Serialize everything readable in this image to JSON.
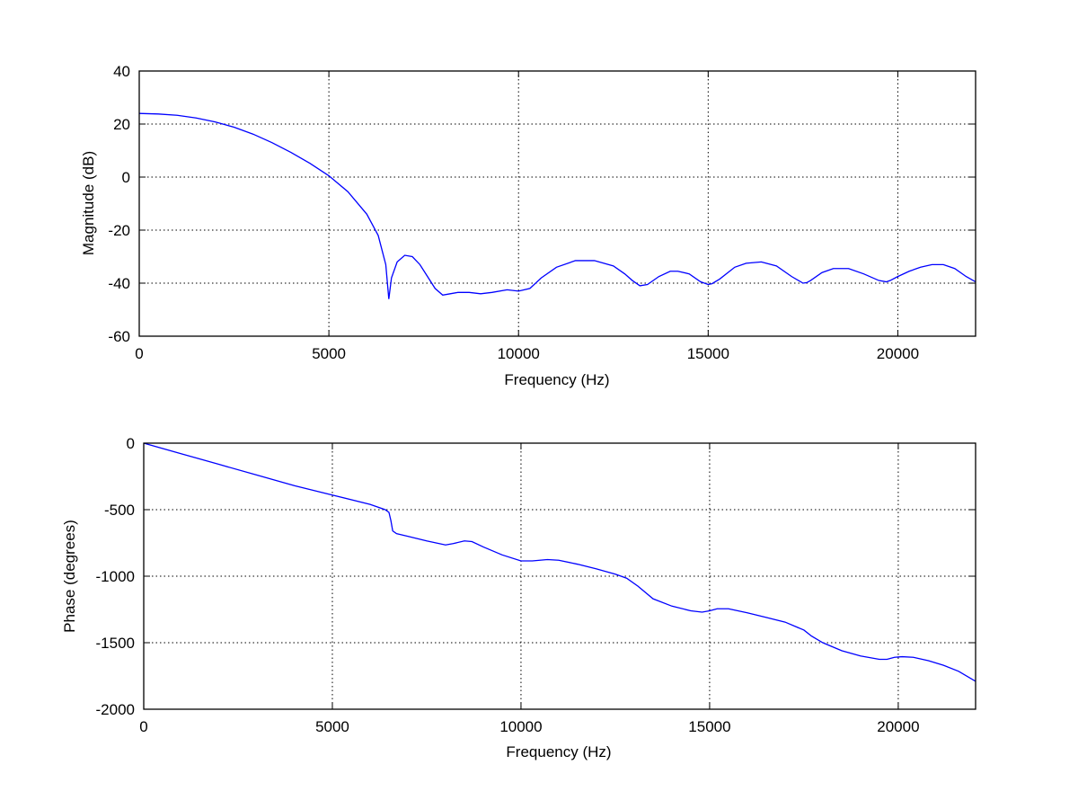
{
  "chart_data": [
    {
      "type": "line",
      "title": "",
      "xlabel": "Frequency (Hz)",
      "ylabel": "Magnitude (dB)",
      "xlim": [
        0,
        22050
      ],
      "ylim": [
        -60,
        40
      ],
      "xticks": [
        0,
        5000,
        10000,
        15000,
        20000
      ],
      "yticks": [
        -60,
        -40,
        -20,
        0,
        20,
        40
      ],
      "grid": true,
      "line_color": "#0000ff",
      "series": [
        {
          "x": [
            0,
            500,
            1000,
            1500,
            2000,
            2500,
            3000,
            3500,
            4000,
            4500,
            5000,
            5500,
            6000,
            6300,
            6500,
            6580,
            6650,
            6800,
            7000,
            7200,
            7400,
            7600,
            7800,
            8000,
            8200,
            8400,
            8700,
            9000,
            9300,
            9700,
            10000,
            10300,
            10600,
            11000,
            11500,
            12000,
            12500,
            12800,
            13000,
            13200,
            13400,
            13700,
            14000,
            14200,
            14500,
            14800,
            15000,
            15100,
            15300,
            15700,
            16000,
            16400,
            16800,
            17200,
            17500,
            17600,
            17700,
            18000,
            18300,
            18700,
            19100,
            19500,
            19700,
            19800,
            20000,
            20300,
            20600,
            20900,
            21200,
            21500,
            21800,
            22050
          ],
          "y": [
            24,
            23.8,
            23.3,
            22.3,
            20.8,
            18.8,
            16.2,
            13,
            9.3,
            5.2,
            0.5,
            -5.5,
            -14,
            -22,
            -33,
            -46,
            -38,
            -32,
            -29.5,
            -30,
            -33,
            -37.5,
            -42,
            -44.5,
            -44,
            -43.5,
            -43.5,
            -44,
            -43.5,
            -42.5,
            -43,
            -42,
            -38,
            -34,
            -31.5,
            -31.5,
            -33.5,
            -36.5,
            -39,
            -41,
            -40.5,
            -37.5,
            -35.5,
            -35.5,
            -36.5,
            -39.5,
            -40.5,
            -40.2,
            -38.5,
            -34,
            -32.5,
            -32,
            -33.5,
            -37.5,
            -40,
            -39.8,
            -39,
            -36,
            -34.5,
            -34.5,
            -36.5,
            -39,
            -39.5,
            -39,
            -37.5,
            -35.5,
            -34,
            -33,
            -33,
            -34.5,
            -37.5,
            -39.5
          ]
        }
      ]
    },
    {
      "type": "line",
      "title": "",
      "xlabel": "Frequency (Hz)",
      "ylabel": "Phase (degrees)",
      "xlim": [
        0,
        22050
      ],
      "ylim": [
        -2000,
        0
      ],
      "xticks": [
        0,
        5000,
        10000,
        15000,
        20000
      ],
      "yticks": [
        -2000,
        -1500,
        -1000,
        -500,
        0
      ],
      "grid": true,
      "line_color": "#0000ff",
      "series": [
        {
          "x": [
            0,
            1000,
            2000,
            3000,
            4000,
            5000,
            6000,
            6400,
            6500,
            6550,
            6600,
            6700,
            7000,
            7500,
            8000,
            8200,
            8500,
            8700,
            9000,
            9500,
            10000,
            10300,
            10700,
            11000,
            11500,
            12000,
            12500,
            12800,
            13100,
            13500,
            14000,
            14500,
            14800,
            15000,
            15200,
            15500,
            16000,
            16500,
            17000,
            17500,
            17700,
            18000,
            18500,
            19000,
            19500,
            19700,
            19900,
            20100,
            20400,
            20800,
            21200,
            21600,
            22050
          ],
          "y": [
            0,
            -80,
            -160,
            -240,
            -320,
            -390,
            -460,
            -500,
            -520,
            -580,
            -660,
            -680,
            -700,
            -735,
            -765,
            -755,
            -735,
            -740,
            -780,
            -840,
            -885,
            -885,
            -875,
            -880,
            -910,
            -945,
            -985,
            -1015,
            -1075,
            -1170,
            -1225,
            -1260,
            -1270,
            -1260,
            -1245,
            -1245,
            -1275,
            -1310,
            -1345,
            -1405,
            -1450,
            -1500,
            -1560,
            -1600,
            -1625,
            -1625,
            -1610,
            -1605,
            -1610,
            -1635,
            -1670,
            -1715,
            -1790
          ]
        }
      ]
    }
  ]
}
